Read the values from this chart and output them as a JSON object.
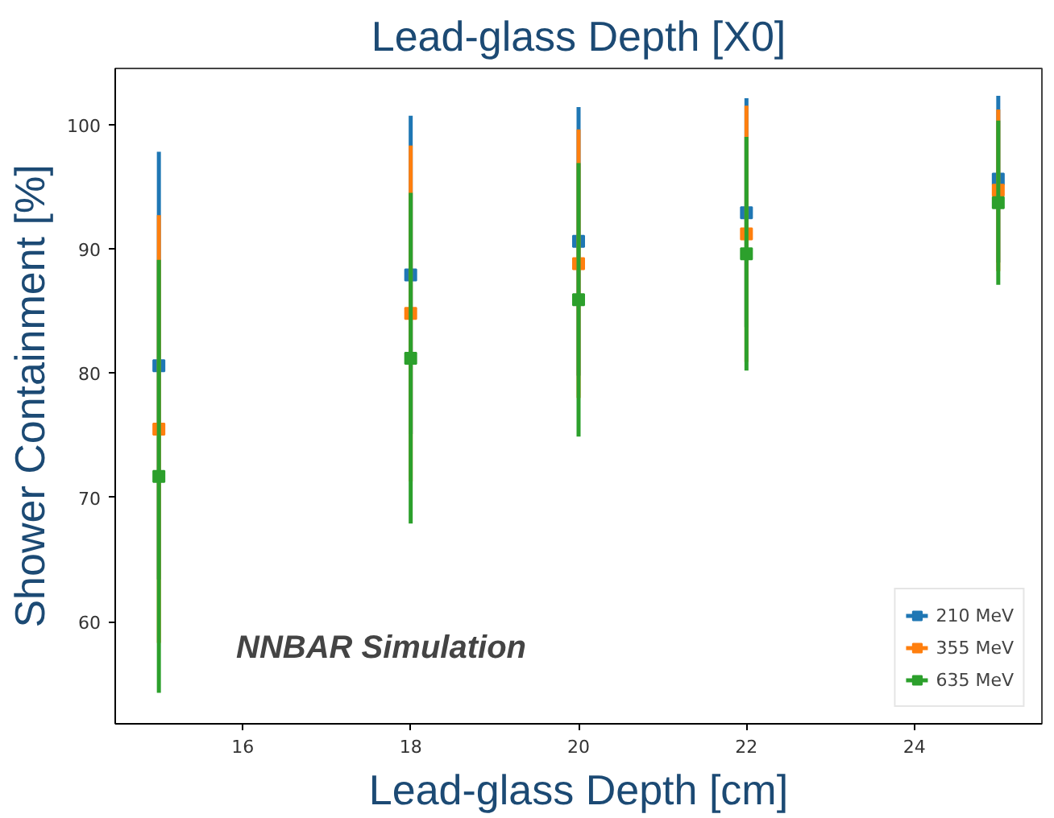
{
  "chart_data": {
    "type": "scatter",
    "title": "Lead-glass Depth [X0]",
    "xlabel": "Lead-glass Depth [cm]",
    "ylabel": "Shower Containment [%]",
    "x": [
      15,
      18,
      20,
      22,
      25
    ],
    "series": [
      {
        "name": "210 MeV",
        "color": "#1f77b4",
        "values": [
          80.6,
          87.9,
          90.6,
          92.9,
          95.6
        ],
        "errors": [
          17.2,
          12.8,
          10.8,
          9.2,
          6.7
        ]
      },
      {
        "name": "355 MeV",
        "color": "#ff7f0e",
        "values": [
          75.5,
          84.8,
          88.8,
          91.2,
          94.7
        ],
        "errors": [
          17.2,
          13.5,
          10.8,
          10.3,
          6.5
        ]
      },
      {
        "name": "635 MeV",
        "color": "#2ca02c",
        "values": [
          71.7,
          81.2,
          85.9,
          89.6,
          93.7
        ],
        "errors": [
          17.4,
          13.3,
          11.0,
          9.4,
          6.6
        ]
      }
    ],
    "annotations": [
      "NNBAR Simulation"
    ],
    "xlim": [
      14.48,
      25.52
    ],
    "ylim": [
      51.8,
      104.5
    ],
    "xticks": [
      16,
      18,
      20,
      22,
      24
    ],
    "yticks": [
      60,
      70,
      80,
      90,
      100
    ],
    "marker": "square",
    "grid": false,
    "legend": "bottom right"
  }
}
